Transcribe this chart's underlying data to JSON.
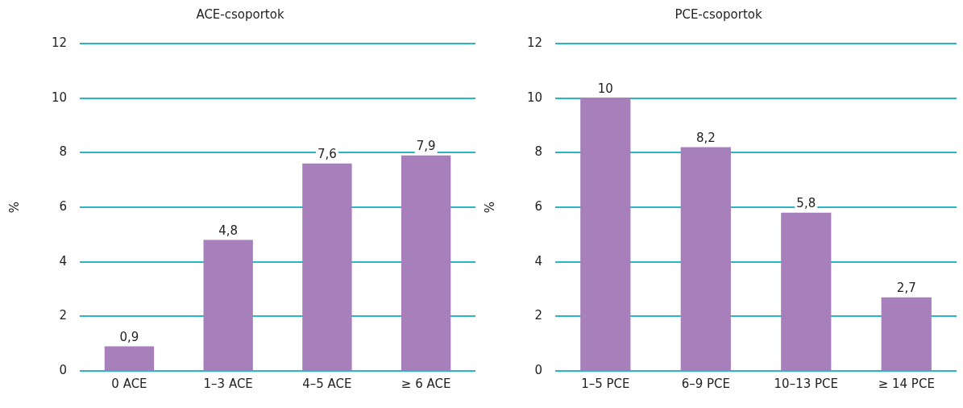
{
  "chart_data": [
    {
      "type": "bar",
      "title": "ACE-csoportok",
      "ylabel": "%",
      "categories": [
        "0 ACE",
        "1–3 ACE",
        "4–5 ACE",
        "≥ 6 ACE"
      ],
      "values": [
        0.9,
        4.8,
        7.6,
        7.9
      ],
      "value_labels": [
        "0,9",
        "4,8",
        "7,6",
        "7,9"
      ],
      "color": "#a67fbb",
      "ylim": [
        0,
        12
      ],
      "yticks": [
        0,
        2,
        4,
        6,
        8,
        10,
        12
      ],
      "grid": "y"
    },
    {
      "type": "bar",
      "title": "PCE-csoportok",
      "ylabel": "%",
      "categories": [
        "1–5 PCE",
        "6–9 PCE",
        "10–13 PCE",
        "≥ 14 PCE"
      ],
      "values": [
        10,
        8.2,
        5.8,
        2.7
      ],
      "value_labels": [
        "10",
        "8,2",
        "5,8",
        "2,7"
      ],
      "color": "#a67fbb",
      "ylim": [
        0,
        12
      ],
      "yticks": [
        0,
        2,
        4,
        6,
        8,
        10,
        12
      ],
      "grid": "y"
    }
  ]
}
